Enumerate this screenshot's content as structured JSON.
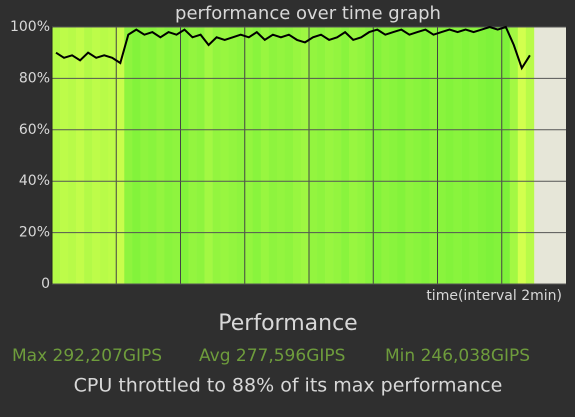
{
  "chart_data": {
    "type": "line",
    "title": "performance over time graph",
    "x_label": "time(interval 2min)",
    "values": [
      90,
      88,
      89,
      87,
      90,
      88,
      89,
      88,
      86,
      97,
      99,
      97,
      98,
      96,
      98,
      97,
      99,
      96,
      97,
      93,
      96,
      95,
      96,
      97,
      96,
      98,
      95,
      97,
      96,
      97,
      95,
      94,
      96,
      97,
      95,
      96,
      98,
      95,
      96,
      98,
      99,
      97,
      98,
      99,
      97,
      98,
      99,
      97,
      98,
      99,
      98,
      99,
      98,
      99,
      100,
      99,
      100,
      93,
      84,
      89
    ],
    "xlim": [
      0,
      64
    ],
    "ylim": [
      0,
      100
    ],
    "yticks": [
      0,
      {
        "value": 20,
        "label": "20%"
      },
      {
        "value": 40,
        "label": "40%"
      },
      {
        "value": 60,
        "label": "60%"
      },
      {
        "value": 80,
        "label": "80%"
      },
      {
        "value": 100,
        "label": "100%"
      }
    ],
    "grid": true,
    "color": "#000000",
    "stripe_colors": [
      "#d2ff4e",
      "#7ef23a"
    ],
    "plot_background": "#e6e6d8"
  },
  "summary": {
    "heading": "Performance",
    "stats": [
      "Max 292,207GIPS",
      "Avg 277,596GIPS",
      "Min 246,038GIPS"
    ],
    "note": "CPU throttled to 88% of its max performance"
  }
}
